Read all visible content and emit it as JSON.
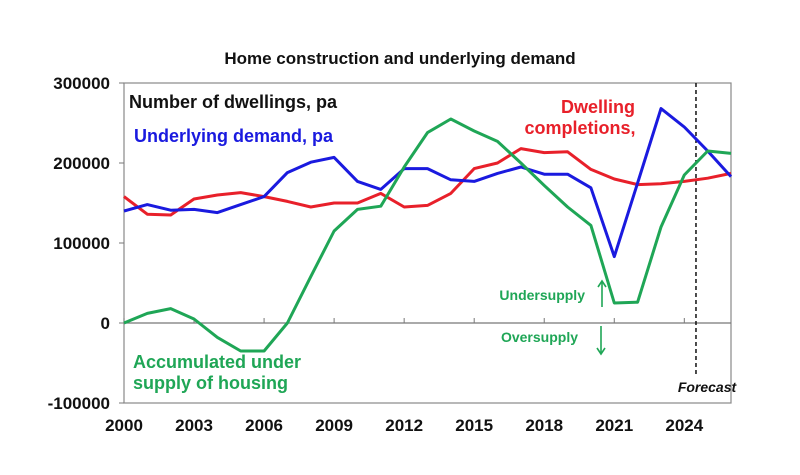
{
  "chart_data": {
    "type": "line",
    "title": "Home construction and underlying demand",
    "ylabel": "Number of dwellings, pa",
    "xlim": [
      2000,
      2026
    ],
    "ylim": [
      -100000,
      300000
    ],
    "x_ticks": [
      2000,
      2003,
      2006,
      2009,
      2012,
      2015,
      2018,
      2021,
      2024
    ],
    "y_ticks": [
      300000,
      200000,
      100000,
      0,
      -100000
    ],
    "x_tick_labels": [
      "2000",
      "2003",
      "2006",
      "2009",
      "2012",
      "2015",
      "2018",
      "2021",
      "2024"
    ],
    "y_tick_labels": [
      "300000",
      "200000",
      "100000",
      "0",
      "-100000"
    ],
    "grid": false,
    "x": [
      2000,
      2001,
      2002,
      2003,
      2004,
      2005,
      2006,
      2007,
      2008,
      2009,
      2010,
      2011,
      2012,
      2013,
      2014,
      2015,
      2016,
      2017,
      2018,
      2019,
      2020,
      2021,
      2022,
      2023,
      2024,
      2025,
      2026
    ],
    "series": [
      {
        "name": "Underlying demand, pa",
        "color": "#1a1adf",
        "values": [
          140000,
          148000,
          141000,
          142000,
          138000,
          148000,
          158000,
          188000,
          201000,
          207000,
          177000,
          167000,
          193000,
          193000,
          179000,
          177000,
          187000,
          195000,
          186000,
          186000,
          169000,
          83000,
          175000,
          268000,
          245000,
          215000,
          183000
        ]
      },
      {
        "name": "Dwelling completions,",
        "color": "#e8202a",
        "values": [
          158000,
          136000,
          135000,
          155000,
          160000,
          163000,
          158000,
          152000,
          145000,
          150000,
          150000,
          162000,
          145000,
          147000,
          162000,
          193000,
          200000,
          218000,
          213000,
          214000,
          192000,
          180000,
          173000,
          174000,
          177000,
          181000,
          187000
        ]
      },
      {
        "name": "Accumulated under supply of housing",
        "color": "#1fa656",
        "values": [
          0,
          12000,
          18000,
          5000,
          -18000,
          -35000,
          -35000,
          0,
          58000,
          115000,
          142000,
          146000,
          195000,
          238000,
          255000,
          240000,
          227000,
          200000,
          172000,
          145000,
          122000,
          25000,
          26000,
          120000,
          185000,
          215000,
          212000
        ]
      }
    ],
    "annotations": {
      "undersupply": "Undersupply",
      "oversupply": "Oversupply",
      "forecast": "Forecast",
      "forecast_start": 2024.5
    }
  }
}
